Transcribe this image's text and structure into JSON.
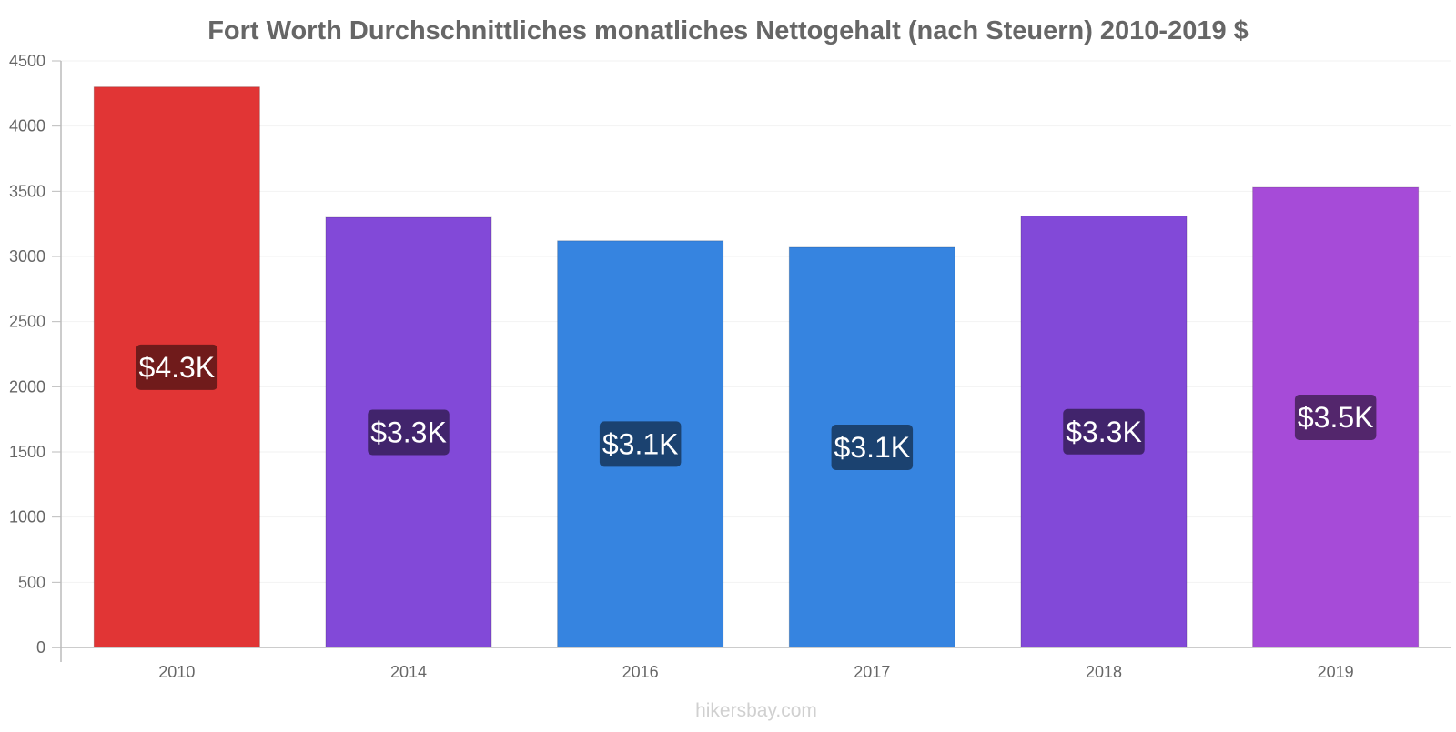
{
  "chart_data": {
    "type": "bar",
    "title": "Fort Worth Durchschnittliches monatliches Nettogehalt (nach Steuern) 2010-2019 $",
    "xlabel": "",
    "ylabel": "",
    "ylim": [
      0,
      4500
    ],
    "y_ticks": [
      0,
      500,
      1000,
      1500,
      2000,
      2500,
      3000,
      3500,
      4000,
      4500
    ],
    "grid": true,
    "legend": "none",
    "categories": [
      "2010",
      "2014",
      "2016",
      "2017",
      "2018",
      "2019"
    ],
    "values": [
      4300,
      3300,
      3120,
      3070,
      3310,
      3530
    ],
    "value_labels": [
      "$4.3K",
      "$3.3K",
      "$3.1K",
      "$3.1K",
      "$3.3K",
      "$3.5K"
    ],
    "bar_colors": [
      "#e13535",
      "#8249d8",
      "#3684e0",
      "#3684e0",
      "#8249d8",
      "#a64bd8"
    ],
    "label_bg_colors": [
      "#701b1b",
      "#41246c",
      "#1b4270",
      "#1b4270",
      "#41246c",
      "#53266c"
    ]
  },
  "watermark": "hikersbay.com"
}
